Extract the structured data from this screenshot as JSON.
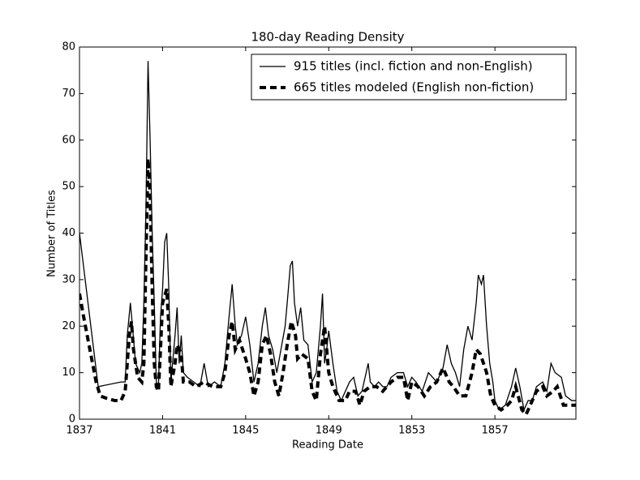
{
  "chart_data": {
    "type": "line",
    "title": "180-day Reading Density",
    "x_label": "Reading Date",
    "y_label": "Number of Titles",
    "xlim": [
      1837,
      1860.9
    ],
    "xticks": [
      1837,
      1841,
      1845,
      1849,
      1853,
      1857
    ],
    "ylim": [
      0,
      80
    ],
    "yticks": [
      0,
      10,
      20,
      30,
      40,
      50,
      60,
      70,
      80
    ],
    "legend": "upper right",
    "series": [
      {
        "name": "915 titles (incl. fiction and non-English)",
        "color": "#000000",
        "style": "solid",
        "x": [
          1837.0,
          1837.9,
          1839.0,
          1839.2,
          1839.3,
          1839.45,
          1839.55,
          1839.7,
          1839.9,
          1840.0,
          1840.1,
          1840.2,
          1840.3,
          1840.4,
          1840.5,
          1840.6,
          1840.7,
          1840.8,
          1840.9,
          1841.0,
          1841.1,
          1841.2,
          1841.3,
          1841.4,
          1841.5,
          1841.6,
          1841.7,
          1841.8,
          1841.9,
          1842.0,
          1842.2,
          1842.5,
          1842.8,
          1843.0,
          1843.2,
          1843.5,
          1843.8,
          1844.0,
          1844.2,
          1844.35,
          1844.5,
          1844.6,
          1844.8,
          1845.0,
          1845.2,
          1845.4,
          1845.6,
          1845.8,
          1845.95,
          1846.1,
          1846.3,
          1846.5,
          1846.7,
          1846.9,
          1847.0,
          1847.15,
          1847.25,
          1847.35,
          1847.5,
          1847.65,
          1847.8,
          1848.0,
          1848.2,
          1848.4,
          1848.6,
          1848.7,
          1848.8,
          1848.9,
          1849.0,
          1849.2,
          1849.4,
          1849.6,
          1849.8,
          1850.0,
          1850.2,
          1850.4,
          1850.6,
          1850.8,
          1850.9,
          1851.0,
          1851.2,
          1851.4,
          1851.6,
          1851.8,
          1852.0,
          1852.3,
          1852.6,
          1852.8,
          1853.0,
          1853.2,
          1853.5,
          1853.8,
          1854.0,
          1854.2,
          1854.5,
          1854.7,
          1854.9,
          1855.1,
          1855.3,
          1855.5,
          1855.7,
          1855.9,
          1856.1,
          1856.2,
          1856.35,
          1856.45,
          1856.6,
          1856.75,
          1856.9,
          1857.0,
          1857.2,
          1857.5,
          1857.8,
          1858.0,
          1858.2,
          1858.4,
          1858.6,
          1858.8,
          1859.0,
          1859.3,
          1859.5,
          1859.7,
          1859.9,
          1860.2,
          1860.4,
          1860.7,
          1860.9
        ],
        "values": [
          40,
          7,
          8,
          8,
          18,
          25,
          20,
          12,
          10,
          12,
          25,
          45,
          77,
          60,
          40,
          25,
          8,
          7,
          22,
          28,
          38,
          40,
          28,
          8,
          13,
          18,
          24,
          12,
          18,
          10,
          9,
          8,
          7,
          12,
          7,
          8,
          7,
          12,
          22,
          29,
          20,
          16,
          18,
          22,
          16,
          8,
          12,
          20,
          24,
          18,
          15,
          10,
          15,
          20,
          25,
          33,
          34,
          25,
          20,
          24,
          17,
          16,
          8,
          10,
          20,
          27,
          12,
          15,
          19,
          12,
          6,
          4,
          6,
          8,
          9,
          5,
          6,
          10,
          12,
          8,
          7,
          8,
          7,
          7,
          9,
          10,
          10,
          7,
          9,
          8,
          6,
          10,
          9,
          8,
          11,
          16,
          12,
          10,
          7,
          15,
          20,
          17,
          25,
          31,
          29,
          31,
          20,
          12,
          8,
          4,
          2,
          3,
          7,
          11,
          7,
          2,
          4,
          4,
          7,
          8,
          6,
          12,
          10,
          9,
          5,
          4,
          4
        ]
      },
      {
        "name": "665 titles modeled (English non-fiction)",
        "color": "#000000",
        "style": "dashed",
        "x": [
          1837.0,
          1837.2,
          1837.5,
          1837.8,
          1838.0,
          1838.3,
          1838.7,
          1839.0,
          1839.2,
          1839.4,
          1839.5,
          1839.6,
          1839.8,
          1840.0,
          1840.1,
          1840.2,
          1840.3,
          1840.4,
          1840.5,
          1840.6,
          1840.7,
          1840.8,
          1840.9,
          1841.0,
          1841.2,
          1841.3,
          1841.4,
          1841.6,
          1841.7,
          1841.9,
          1842.0,
          1842.3,
          1842.6,
          1843.0,
          1843.4,
          1843.8,
          1844.0,
          1844.2,
          1844.35,
          1844.5,
          1844.7,
          1845.0,
          1845.2,
          1845.4,
          1845.6,
          1845.8,
          1846.0,
          1846.2,
          1846.4,
          1846.6,
          1846.8,
          1847.0,
          1847.2,
          1847.4,
          1847.5,
          1847.7,
          1848.0,
          1848.2,
          1848.4,
          1848.6,
          1848.8,
          1849.0,
          1849.2,
          1849.5,
          1849.8,
          1850.0,
          1850.3,
          1850.5,
          1850.7,
          1851.0,
          1851.3,
          1851.6,
          1852.0,
          1852.3,
          1852.6,
          1852.8,
          1853.0,
          1853.3,
          1853.6,
          1853.9,
          1854.2,
          1854.5,
          1854.8,
          1855.0,
          1855.3,
          1855.6,
          1855.9,
          1856.1,
          1856.3,
          1856.6,
          1856.8,
          1857.0,
          1857.3,
          1857.6,
          1857.8,
          1858.0,
          1858.3,
          1858.5,
          1858.8,
          1859.0,
          1859.3,
          1859.5,
          1859.8,
          1860.0,
          1860.3,
          1860.6,
          1860.9
        ],
        "values": [
          27,
          22,
          15,
          8,
          5,
          4.5,
          4,
          4,
          6,
          18,
          21,
          15,
          9,
          8,
          12,
          35,
          56,
          48,
          28,
          12,
          7,
          6,
          15,
          25,
          28,
          20,
          7,
          12,
          16,
          14,
          8,
          8,
          7,
          8,
          7,
          7,
          10,
          18,
          21,
          15,
          17,
          13,
          10,
          5,
          8,
          16,
          18,
          14,
          8,
          5,
          10,
          16,
          21,
          18,
          13,
          14,
          13,
          6,
          4,
          14,
          20,
          10,
          7,
          4,
          4,
          6,
          6,
          3,
          6,
          7,
          7,
          6,
          8,
          9,
          9,
          4,
          8,
          7,
          5,
          7,
          8,
          11,
          8,
          7,
          5,
          5,
          10,
          15,
          14,
          10,
          5,
          3,
          2,
          3,
          4,
          7,
          2,
          1,
          4,
          6,
          7,
          5,
          6,
          7,
          3,
          3,
          3
        ]
      }
    ]
  }
}
